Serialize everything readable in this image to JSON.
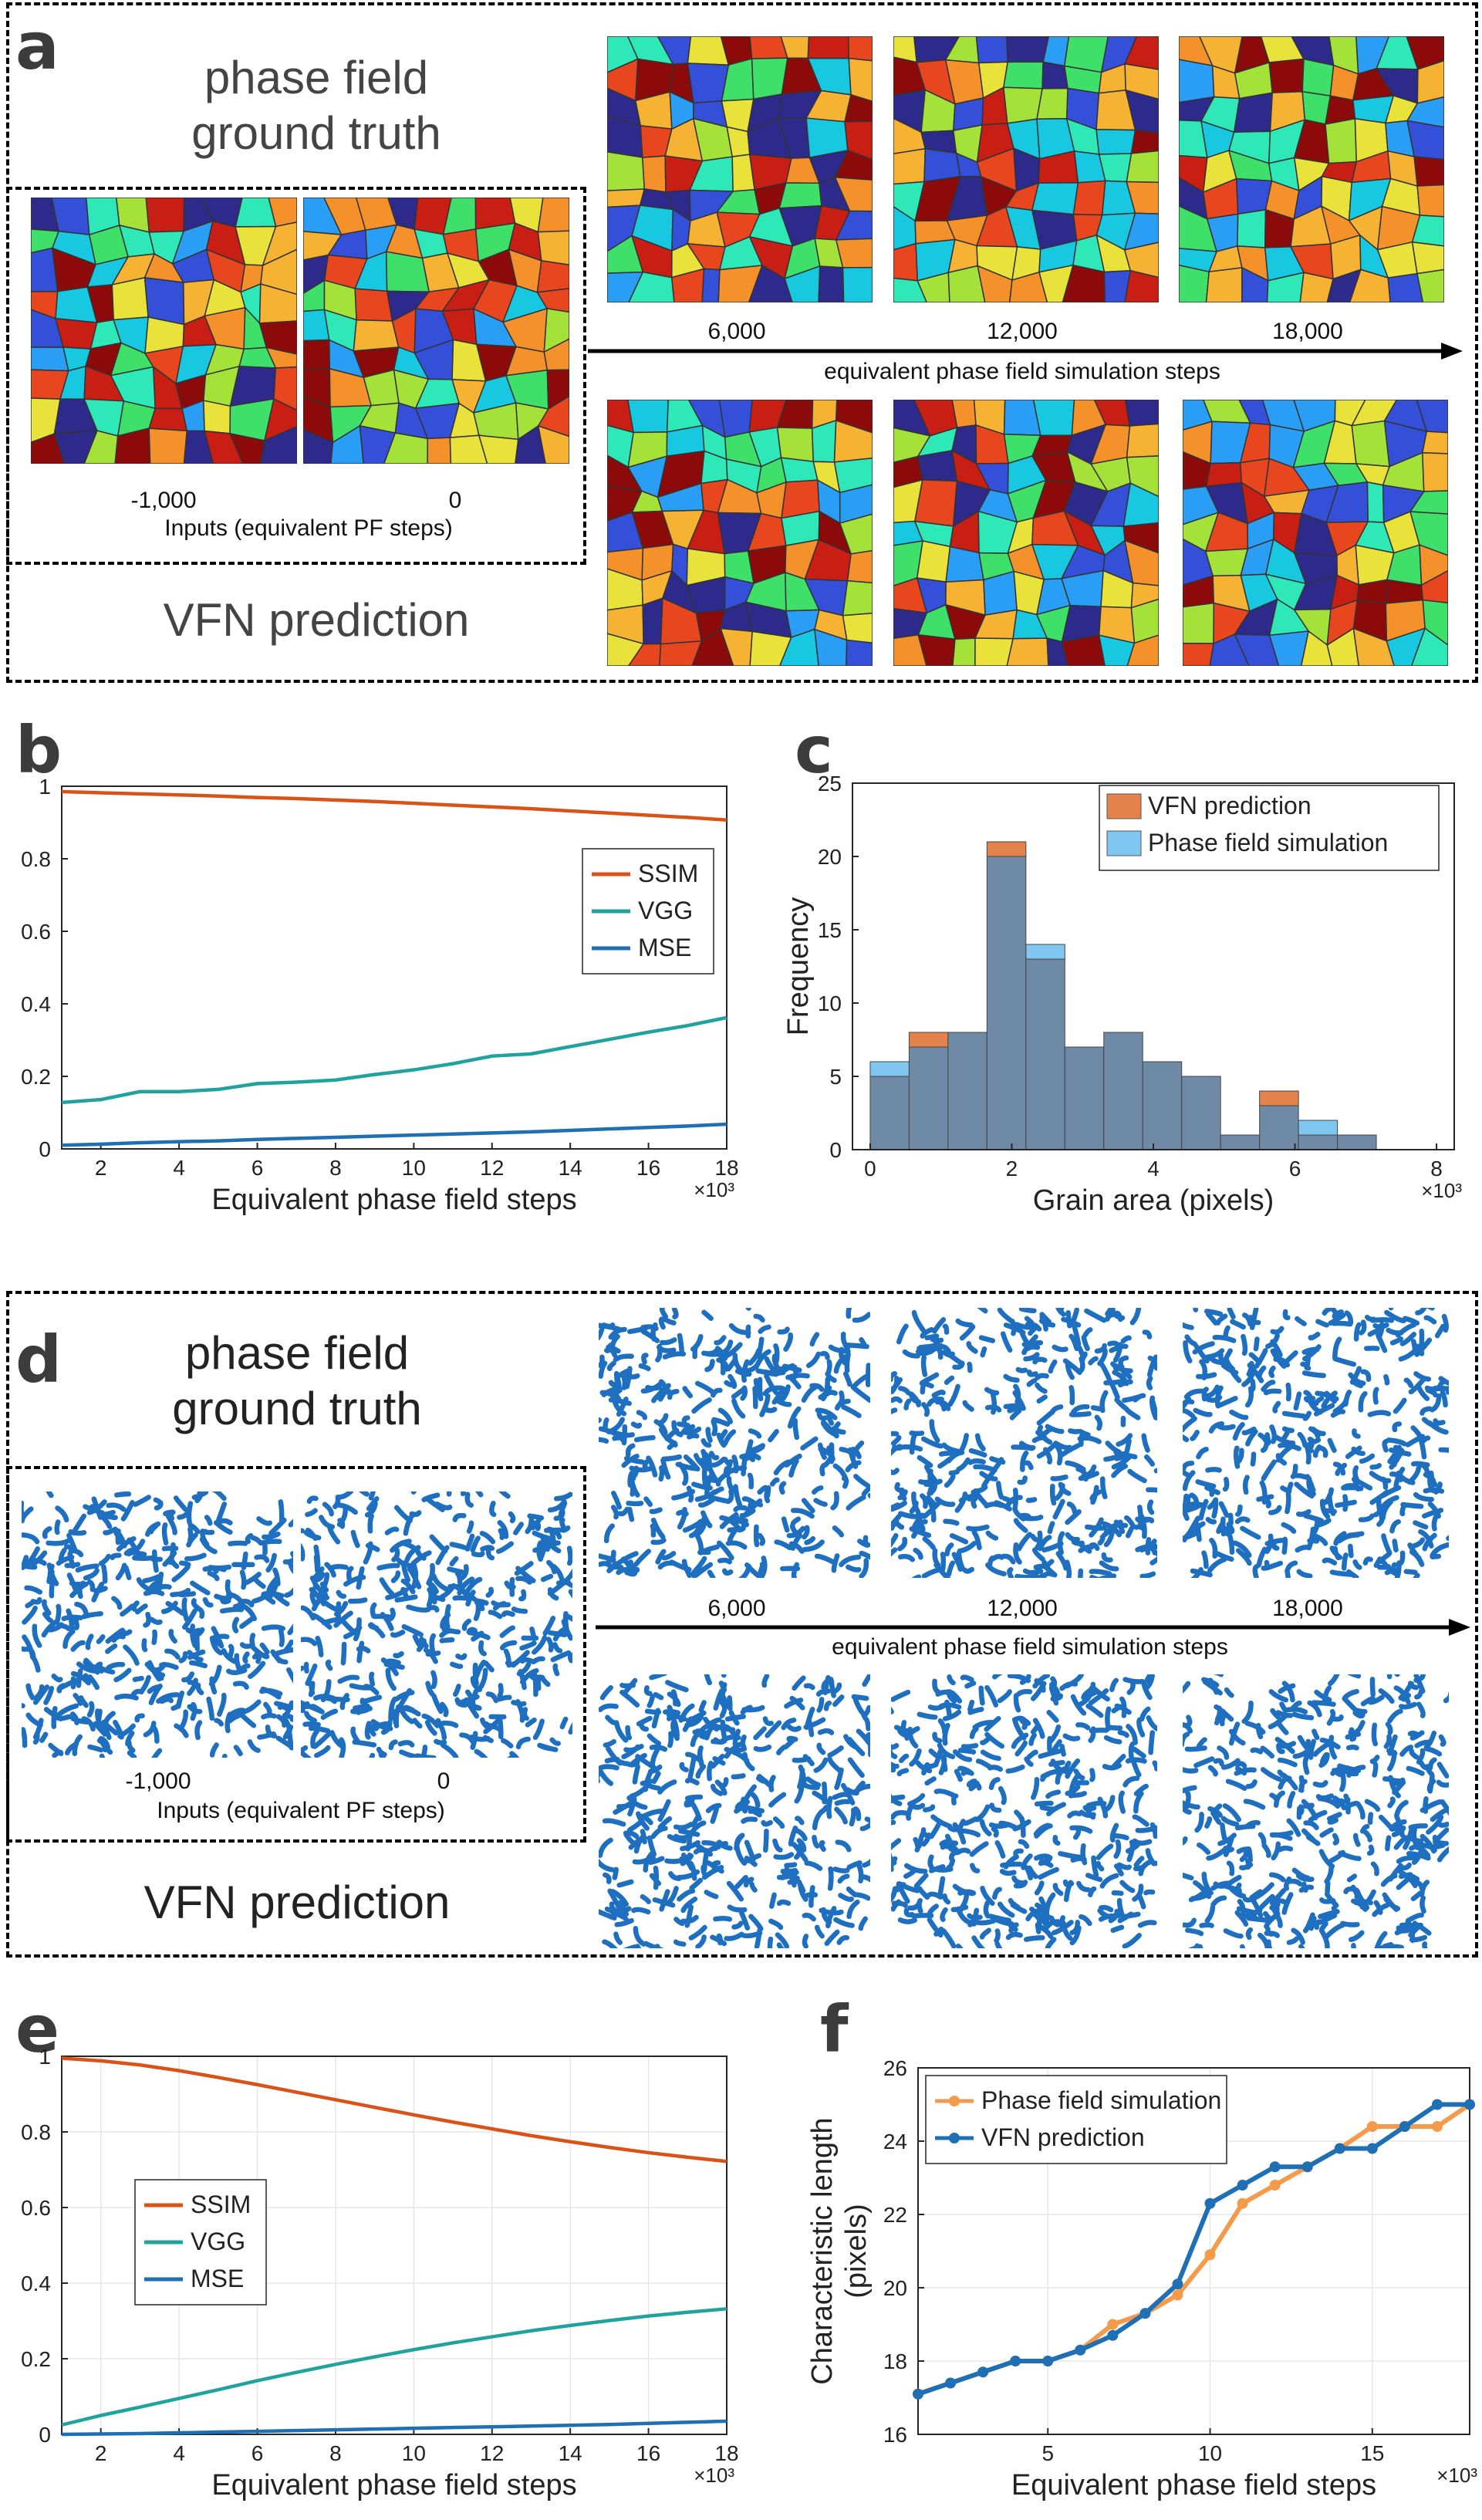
{
  "figure": {
    "panel_labels": {
      "a": "a",
      "b": "b",
      "c": "c",
      "d": "d",
      "e": "e",
      "f": "f"
    },
    "a": {
      "gt_title_line1": "phase field",
      "gt_title_line2": "ground truth",
      "pred_title": "VFN prediction",
      "input_steps": [
        "-1,000",
        "0"
      ],
      "inputs_caption": "Inputs (equivalent PF steps)",
      "timeline_steps": [
        "6,000",
        "12,000",
        "18,000"
      ],
      "timeline_caption": "equivalent phase field simulation steps"
    },
    "d": {
      "gt_title_line1": "phase field",
      "gt_title_line2": "ground truth",
      "pred_title": "VFN prediction",
      "input_steps": [
        "-1,000",
        "0"
      ],
      "inputs_caption": "Inputs (equivalent PF steps)",
      "timeline_steps": [
        "6,000",
        "12,000",
        "18,000"
      ],
      "timeline_caption": "equivalent phase field simulation steps"
    },
    "colors": {
      "grain_palette": [
        "#2d2a8c",
        "#3450d8",
        "#2a9df4",
        "#17c8e0",
        "#2fe8b8",
        "#3ee06a",
        "#a4e23a",
        "#e8e23a",
        "#f5b233",
        "#f5912a",
        "#e8461e",
        "#c81e14",
        "#8c0a0a"
      ],
      "spinodal_blue": "#1e6fc0",
      "ssim": "#d95319",
      "vgg": "#20a39e",
      "mse": "#1f6fb5",
      "vfn_bar": "#e3824a",
      "pf_bar": "#7fc7f0",
      "overlap_bar": "#6e8aa6",
      "pf_line": "#f59a4b",
      "vfn_line": "#1f6fb5"
    }
  },
  "chart_data": [
    {
      "id": "b",
      "type": "line",
      "xlabel": "Equivalent phase field steps",
      "x_multiplier": "×10³",
      "xlim": [
        1,
        18
      ],
      "ylim": [
        0,
        1
      ],
      "xticks": [
        2,
        4,
        6,
        8,
        10,
        12,
        14,
        16,
        18
      ],
      "yticks": [
        0,
        0.2,
        0.4,
        0.6,
        0.8,
        1
      ],
      "legend_position": "right",
      "x": [
        1,
        2,
        3,
        4,
        5,
        6,
        7,
        8,
        9,
        10,
        11,
        12,
        13,
        14,
        15,
        16,
        17,
        18
      ],
      "series": [
        {
          "name": "SSIM",
          "values": [
            0.985,
            0.982,
            0.979,
            0.976,
            0.973,
            0.969,
            0.966,
            0.962,
            0.958,
            0.953,
            0.948,
            0.943,
            0.938,
            0.932,
            0.926,
            0.92,
            0.914,
            0.907
          ]
        },
        {
          "name": "VGG",
          "values": [
            0.128,
            0.136,
            0.158,
            0.158,
            0.164,
            0.18,
            0.184,
            0.19,
            0.205,
            0.218,
            0.235,
            0.256,
            0.262,
            0.282,
            0.302,
            0.322,
            0.34,
            0.362
          ]
        },
        {
          "name": "MSE",
          "values": [
            0.01,
            0.013,
            0.017,
            0.02,
            0.022,
            0.026,
            0.029,
            0.032,
            0.035,
            0.038,
            0.041,
            0.044,
            0.047,
            0.051,
            0.055,
            0.059,
            0.063,
            0.068
          ]
        }
      ]
    },
    {
      "id": "c",
      "type": "bar",
      "xlabel": "Grain area (pixels)",
      "ylabel": "Frequency",
      "x_multiplier": "×10³",
      "xlim": [
        -0.25,
        8.25
      ],
      "ylim": [
        0,
        25
      ],
      "xticks": [
        0,
        2,
        4,
        6,
        8
      ],
      "yticks": [
        0,
        5,
        10,
        15,
        20,
        25
      ],
      "bin_width": 0.55,
      "legend_position": "top-right",
      "bin_starts": [
        0,
        0.55,
        1.1,
        1.65,
        2.2,
        2.75,
        3.3,
        3.85,
        4.4,
        4.95,
        5.5,
        6.05,
        6.6,
        7.15,
        7.7
      ],
      "series": [
        {
          "name": "VFN prediction",
          "values": [
            5,
            8,
            8,
            21,
            13,
            7,
            8,
            6,
            5,
            1,
            4,
            1,
            1,
            0,
            0
          ]
        },
        {
          "name": "Phase field simulation",
          "values": [
            6,
            7,
            8,
            20,
            14,
            7,
            8,
            6,
            5,
            1,
            3,
            2,
            1,
            0,
            0
          ]
        }
      ]
    },
    {
      "id": "e",
      "type": "line",
      "xlabel": "Equivalent phase field steps",
      "x_multiplier": "×10³",
      "xlim": [
        1,
        18
      ],
      "ylim": [
        0,
        1
      ],
      "xticks": [
        2,
        4,
        6,
        8,
        10,
        12,
        14,
        16,
        18
      ],
      "yticks": [
        0,
        0.2,
        0.4,
        0.6,
        0.8,
        1
      ],
      "legend_position": "left",
      "x": [
        1,
        2,
        3,
        4,
        5,
        6,
        7,
        8,
        9,
        10,
        11,
        12,
        13,
        14,
        15,
        16,
        17,
        18
      ],
      "series": [
        {
          "name": "SSIM",
          "values": [
            0.995,
            0.988,
            0.977,
            0.962,
            0.944,
            0.925,
            0.905,
            0.885,
            0.865,
            0.845,
            0.826,
            0.808,
            0.79,
            0.774,
            0.759,
            0.745,
            0.733,
            0.722
          ]
        },
        {
          "name": "VGG",
          "values": [
            0.025,
            0.05,
            0.072,
            0.095,
            0.118,
            0.142,
            0.164,
            0.185,
            0.205,
            0.224,
            0.242,
            0.258,
            0.274,
            0.288,
            0.301,
            0.313,
            0.323,
            0.332
          ]
        },
        {
          "name": "MSE",
          "values": [
            0.0,
            0.001,
            0.002,
            0.004,
            0.006,
            0.008,
            0.01,
            0.012,
            0.014,
            0.016,
            0.018,
            0.02,
            0.022,
            0.024,
            0.026,
            0.029,
            0.032,
            0.035
          ]
        }
      ]
    },
    {
      "id": "f",
      "type": "line",
      "xlabel": "Equivalent phase field steps",
      "ylabel_line1": "Characteristic length",
      "ylabel_line2": "(pixels)",
      "x_multiplier": "×10³",
      "xlim": [
        1,
        18
      ],
      "ylim": [
        16,
        26
      ],
      "xticks": [
        5,
        10,
        15
      ],
      "yticks": [
        16,
        18,
        20,
        22,
        24,
        26
      ],
      "legend_position": "top-left",
      "x": [
        1,
        2,
        3,
        4,
        5,
        6,
        7,
        8,
        9,
        10,
        11,
        12,
        13,
        14,
        15,
        16,
        17,
        18
      ],
      "series": [
        {
          "name": "Phase field simulation",
          "values": [
            17.1,
            17.4,
            17.7,
            18.0,
            18.0,
            18.3,
            19.0,
            19.3,
            19.8,
            20.9,
            22.3,
            22.8,
            23.3,
            23.8,
            24.4,
            24.4,
            24.4,
            25.0
          ]
        },
        {
          "name": "VFN prediction",
          "values": [
            17.1,
            17.4,
            17.7,
            18.0,
            18.0,
            18.3,
            18.7,
            19.3,
            20.1,
            22.3,
            22.8,
            23.3,
            23.3,
            23.8,
            23.8,
            24.4,
            25.0,
            25.0
          ]
        }
      ]
    }
  ]
}
